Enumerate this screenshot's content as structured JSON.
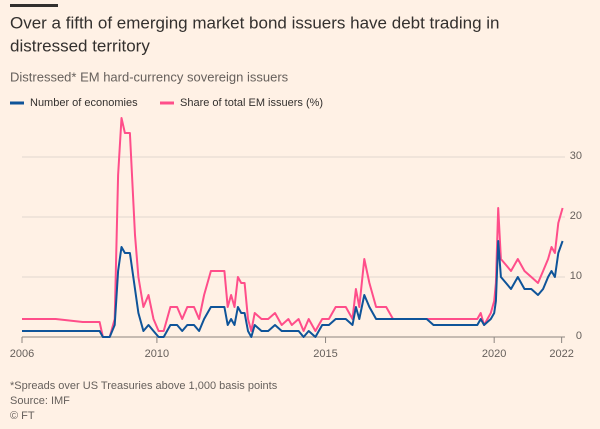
{
  "chart_data": {
    "type": "line",
    "title": [
      "Over a fifth of emerging market bond issuers have debt trading in",
      "distressed territory"
    ],
    "subtitle": "Distressed* EM hard-currency sovereign issuers",
    "footnote": "*Spreads over US Treasuries above 1,000 basis points",
    "source": "Source: IMF",
    "credit": "© FT",
    "x": [
      2006.0,
      2007.0,
      2007.8,
      2008.3,
      2008.4,
      2008.6,
      2008.75,
      2008.85,
      2008.95,
      2009.05,
      2009.2,
      2009.35,
      2009.45,
      2009.6,
      2009.75,
      2009.9,
      2010.05,
      2010.2,
      2010.4,
      2010.6,
      2010.75,
      2010.9,
      2011.1,
      2011.25,
      2011.4,
      2011.6,
      2011.8,
      2012.0,
      2012.1,
      2012.2,
      2012.3,
      2012.4,
      2012.5,
      2012.6,
      2012.7,
      2012.8,
      2012.9,
      2013.1,
      2013.3,
      2013.5,
      2013.7,
      2013.9,
      2014.0,
      2014.2,
      2014.35,
      2014.5,
      2014.7,
      2014.9,
      2015.1,
      2015.3,
      2015.6,
      2015.8,
      2015.9,
      2016.0,
      2016.15,
      2016.3,
      2016.5,
      2016.8,
      2017.0,
      2018.0,
      2018.2,
      2019.0,
      2019.5,
      2019.6,
      2019.7,
      2019.9,
      2020.0,
      2020.05,
      2020.12,
      2020.2,
      2020.35,
      2020.5,
      2020.7,
      2020.9,
      2021.1,
      2021.3,
      2021.45,
      2021.6,
      2021.7,
      2021.8,
      2021.9,
      2022.03
    ],
    "series": [
      {
        "name": "Number of economies",
        "color": "#0f5499",
        "values": [
          1,
          1,
          1,
          1,
          0,
          0,
          2,
          11,
          15,
          14,
          14,
          8,
          4,
          1,
          2,
          1,
          0,
          0,
          2,
          2,
          1,
          2,
          2,
          1,
          3,
          5,
          5,
          5,
          2,
          3,
          2,
          5,
          4,
          4,
          1,
          0,
          2,
          1,
          1,
          2,
          1,
          1,
          1,
          1,
          0,
          1,
          0,
          2,
          2,
          3,
          3,
          2,
          5,
          3,
          7,
          5,
          3,
          3,
          3,
          3,
          2,
          2,
          2,
          3,
          2,
          3,
          4,
          6,
          16,
          10,
          9,
          8,
          10,
          8,
          8,
          7,
          8,
          10,
          11,
          10,
          14,
          16
        ]
      },
      {
        "name": "Share of total EM issuers (%)",
        "color": "#ff4e8a",
        "values": [
          3,
          3,
          2.5,
          2.5,
          0,
          0,
          3,
          27,
          36.5,
          34,
          34,
          17,
          10,
          5,
          7,
          3,
          1,
          1,
          5,
          5,
          3,
          5,
          5,
          3,
          7,
          11,
          11,
          11,
          5,
          7,
          5,
          10,
          9,
          9,
          3,
          1,
          4,
          3,
          3,
          4,
          2,
          3,
          2,
          3,
          1,
          3,
          1,
          3,
          3,
          5,
          5,
          3,
          8,
          5,
          13,
          9,
          5,
          5,
          3,
          3,
          3,
          3,
          3,
          4,
          2,
          4,
          6,
          9,
          21.5,
          13,
          12,
          11,
          13,
          11,
          10,
          9,
          11,
          13,
          15,
          14,
          19,
          21.5
        ]
      }
    ],
    "xlim": [
      2006,
      2022.1
    ],
    "xticks": [
      2006,
      2010,
      2015,
      2020,
      2022
    ],
    "ylim": [
      0,
      37
    ],
    "yticks": [
      0,
      10,
      20,
      30
    ],
    "grid": true
  }
}
